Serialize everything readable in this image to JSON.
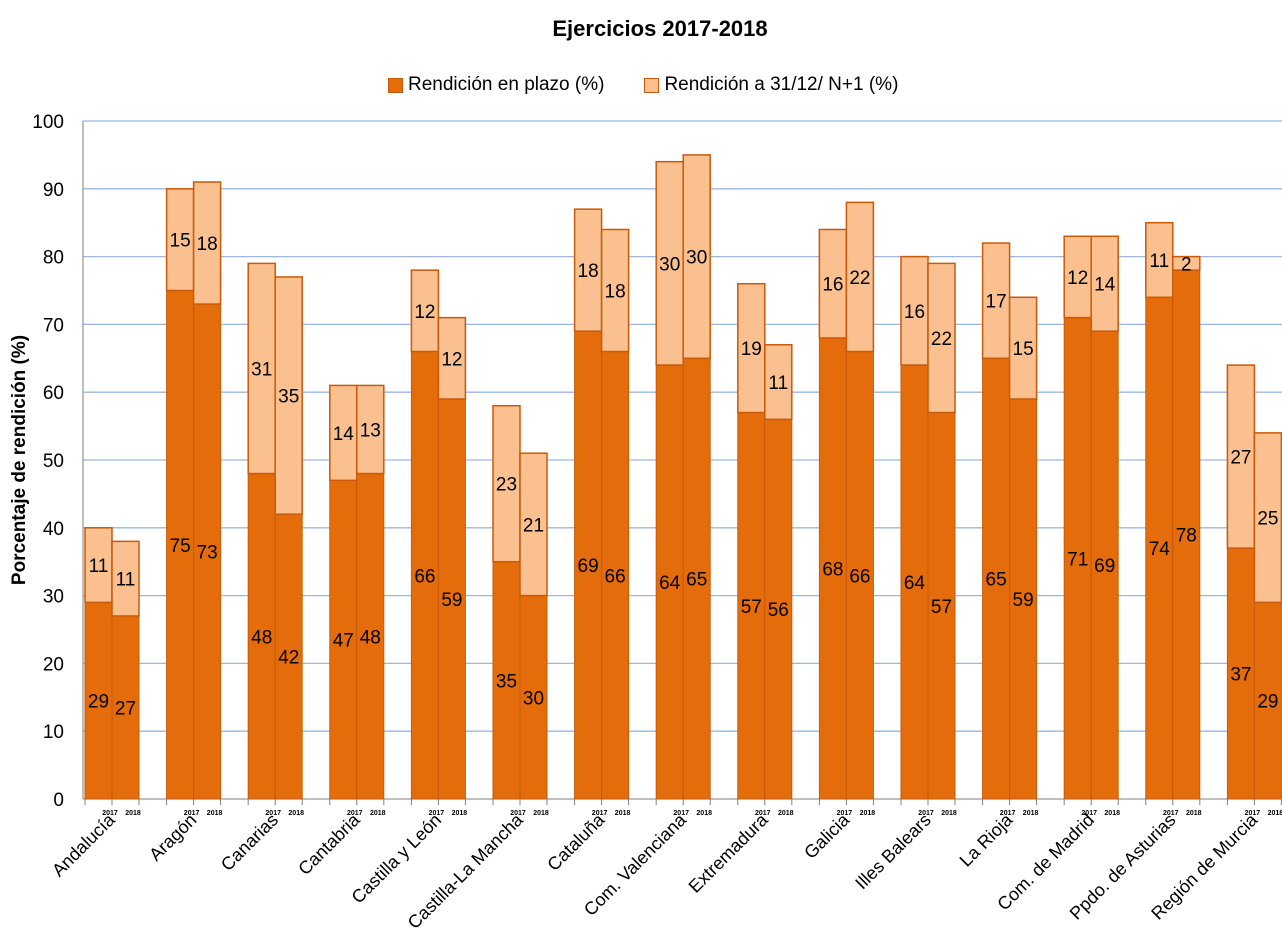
{
  "chart_data": {
    "type": "bar",
    "stacked": true,
    "title": "Ejercicios 2017-2018",
    "ylabel": "Porcentaje de rendición (%)",
    "xlabel": "",
    "ylim": [
      0,
      100
    ],
    "yticks": [
      0,
      10,
      20,
      30,
      40,
      50,
      60,
      70,
      80,
      90,
      100
    ],
    "grid": true,
    "legend_position": "top-center",
    "categories": [
      "Andalucía",
      "Aragón",
      "Canarias",
      "Cantabria",
      "Castilla y León",
      "Castilla-La Mancha",
      "Cataluña",
      "Com. Valenciana",
      "Extremadura",
      "Galicia",
      "Illes Balears",
      "La Rioja",
      "Com. de Madrid",
      "Ppdo. de Asturias",
      "Región de Murcia"
    ],
    "sub_categories": [
      "2017",
      "2018"
    ],
    "series": [
      {
        "name": "Rendición en plazo (%)",
        "color": "#e46c0a",
        "values_2017": [
          29,
          75,
          48,
          47,
          66,
          35,
          69,
          64,
          57,
          68,
          64,
          65,
          71,
          74,
          37
        ],
        "values_2018": [
          27,
          73,
          42,
          48,
          59,
          30,
          66,
          65,
          56,
          66,
          57,
          59,
          69,
          78,
          29
        ]
      },
      {
        "name": "Rendición a 31/12/ N+1 (%)",
        "color": "#fac090",
        "values_2017": [
          11,
          15,
          31,
          14,
          12,
          23,
          18,
          30,
          19,
          16,
          16,
          17,
          12,
          11,
          27
        ],
        "values_2018": [
          11,
          18,
          35,
          13,
          12,
          21,
          18,
          30,
          11,
          22,
          22,
          15,
          14,
          2,
          25
        ]
      }
    ],
    "colors": {
      "plazo": "#e46c0a",
      "n1": "#fac090",
      "border": "#c85a0a",
      "grid": "#9bb7e0"
    }
  }
}
